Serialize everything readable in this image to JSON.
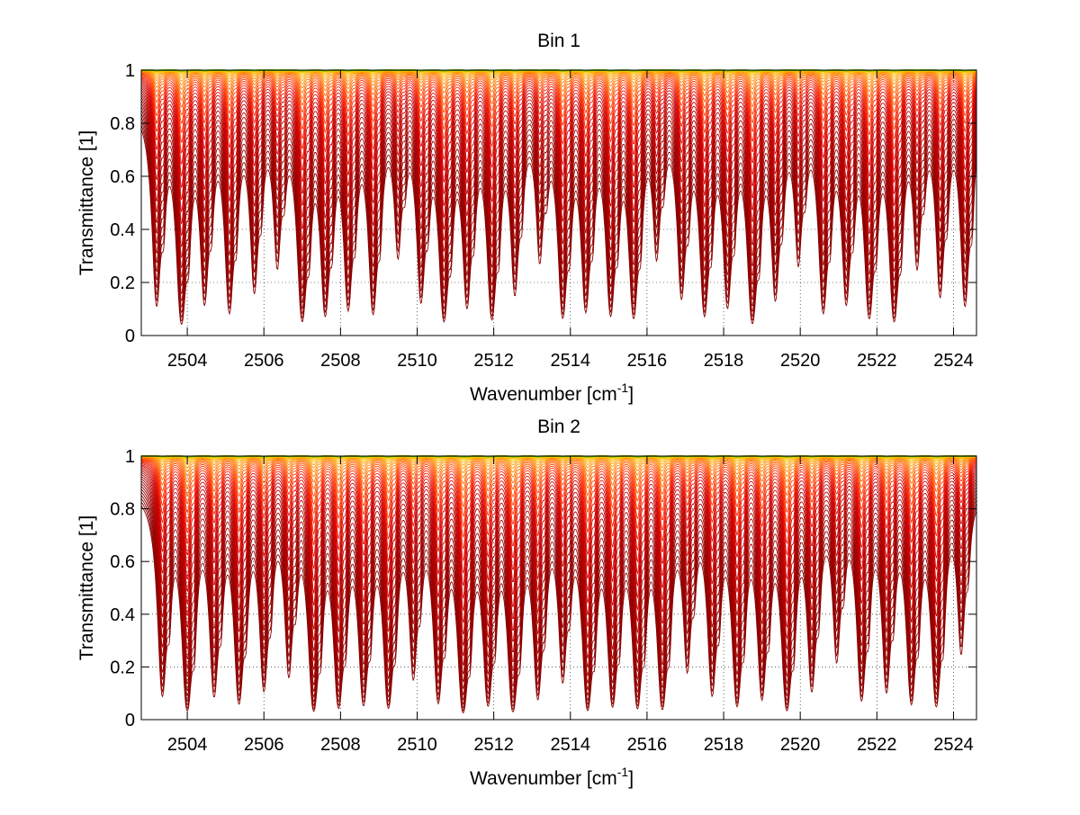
{
  "chart_data": [
    {
      "type": "line",
      "title": "Bin 1",
      "xlabel": "Wavenumber [cm",
      "xlabel_sup": "-1",
      "xlabel_end": "]",
      "ylabel": "Transmittance [1]",
      "xlim": [
        2502.8,
        2524.6
      ],
      "ylim": [
        0,
        1
      ],
      "xticks": [
        2504,
        2506,
        2508,
        2510,
        2512,
        2514,
        2516,
        2518,
        2520,
        2522,
        2524
      ],
      "yticks": [
        0,
        0.2,
        0.4,
        0.6,
        0.8,
        1
      ],
      "grid": true,
      "n_series": 40,
      "line_centers": [
        2503.2,
        2503.85,
        2504.45,
        2505.1,
        2505.75,
        2506.35,
        2507.0,
        2507.6,
        2508.2,
        2508.85,
        2509.5,
        2510.1,
        2510.7,
        2511.3,
        2511.95,
        2512.55,
        2513.2,
        2513.8,
        2514.4,
        2515.05,
        2515.65,
        2516.25,
        2516.9,
        2517.5,
        2518.1,
        2518.75,
        2519.35,
        2519.95,
        2520.6,
        2521.2,
        2521.8,
        2522.45,
        2523.05,
        2523.65,
        2524.3
      ],
      "series_colors": [
        "#8b0000",
        "#b30000",
        "#d40000",
        "#ff2a00",
        "#ff6600",
        "#ff9900",
        "#ffcc00",
        "#c8d000",
        "#6fb000"
      ]
    },
    {
      "type": "line",
      "title": "Bin 2",
      "xlabel": "Wavenumber [cm",
      "xlabel_sup": "-1",
      "xlabel_end": "]",
      "ylabel": "Transmittance [1]",
      "xlim": [
        2502.8,
        2524.6
      ],
      "ylim": [
        0,
        1
      ],
      "xticks": [
        2504,
        2506,
        2508,
        2510,
        2512,
        2514,
        2516,
        2518,
        2520,
        2522,
        2524
      ],
      "yticks": [
        0,
        0.2,
        0.4,
        0.6,
        0.8,
        1
      ],
      "grid": true,
      "n_series": 40,
      "line_centers": [
        2503.35,
        2504.0,
        2504.7,
        2505.35,
        2506.0,
        2506.65,
        2507.3,
        2507.95,
        2508.6,
        2509.25,
        2509.9,
        2510.55,
        2511.2,
        2511.85,
        2512.5,
        2513.15,
        2513.8,
        2514.45,
        2515.1,
        2515.75,
        2516.4,
        2517.05,
        2517.7,
        2518.35,
        2519.0,
        2519.65,
        2520.3,
        2520.95,
        2521.6,
        2522.25,
        2522.9,
        2523.55,
        2524.2
      ],
      "series_colors": [
        "#8b0000",
        "#b30000",
        "#d40000",
        "#ff2a00",
        "#ff6600",
        "#ff9900",
        "#ffcc00",
        "#c8d000",
        "#6fb000"
      ]
    }
  ]
}
